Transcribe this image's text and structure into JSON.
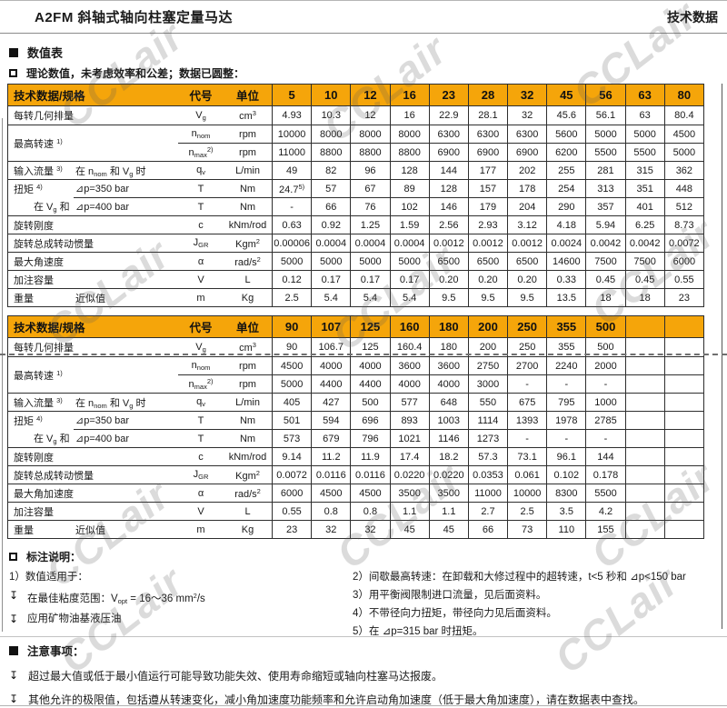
{
  "page": {
    "title": "A2FM 斜轴式轴向柱塞定量马达",
    "title_right": "技术数据",
    "watermark": "CCLair"
  },
  "sections": {
    "values_heading": "数值表",
    "values_note": "理论数值，未考虑效率和公差；数据已圆整："
  },
  "table_header": {
    "spec": "技术数据/规格",
    "code": "代号",
    "unit": "单位"
  },
  "tables": [
    {
      "sizes": [
        "5",
        "10",
        "12",
        "16",
        "23",
        "28",
        "32",
        "45",
        "56",
        "63",
        "80"
      ],
      "rows": [
        {
          "label": "每转几何排量",
          "code": "V~{g}",
          "unit": "cm^{3}",
          "values": [
            "4.93",
            "10.3",
            "12",
            "16",
            "22.9",
            "28.1",
            "32",
            "45.6",
            "56.1",
            "63",
            "80.4"
          ]
        },
        {
          "label": "最高转速 ^{1)}",
          "rowspan": 2,
          "code": "n~{nom}",
          "unit": "rpm",
          "values": [
            "10000",
            "8000",
            "8000",
            "8000",
            "6300",
            "6300",
            "6300",
            "5600",
            "5000",
            "5000",
            "4500"
          ]
        },
        {
          "noLabel": true,
          "code": "n~{max}^{2)}",
          "unit": "rpm",
          "values": [
            "11000",
            "8800",
            "8800",
            "8800",
            "6900",
            "6900",
            "6900",
            "6200",
            "5500",
            "5500",
            "5000"
          ]
        },
        {
          "label": "输入流量 ^{3)}",
          "sub": "在 n~{nom} 和 V~{g} 时",
          "code": "q~{v}",
          "unit": "L/min",
          "values": [
            "49",
            "82",
            "96",
            "128",
            "144",
            "177",
            "202",
            "255",
            "281",
            "315",
            "362"
          ]
        },
        {
          "label": "扭矩 ^{4)}",
          "sub": "⊿p=350 bar",
          "code": "T",
          "unit": "Nm",
          "values": [
            "24.7^{5)}",
            "57",
            "67",
            "89",
            "128",
            "157",
            "178",
            "254",
            "313",
            "351",
            "448"
          ]
        },
        {
          "label": "在 V~{g} 和",
          "indent": true,
          "noTop": true,
          "sub": "⊿p=400 bar",
          "code": "T",
          "unit": "Nm",
          "values": [
            "-",
            "66",
            "76",
            "102",
            "146",
            "179",
            "204",
            "290",
            "357",
            "401",
            "512"
          ]
        },
        {
          "label": "旋转刚度",
          "code": "c",
          "unit": "kNm/rod",
          "values": [
            "0.63",
            "0.92",
            "1.25",
            "1.59",
            "2.56",
            "2.93",
            "3.12",
            "4.18",
            "5.94",
            "6.25",
            "8.73"
          ]
        },
        {
          "label": "旋转总成转动惯量",
          "code": "J~{GR}",
          "unit": "Kgm^{2}",
          "values": [
            "0.00006",
            "0.0004",
            "0.0004",
            "0.0004",
            "0.0012",
            "0.0012",
            "0.0012",
            "0.0024",
            "0.0042",
            "0.0042",
            "0.0072"
          ]
        },
        {
          "label": "最大角速度",
          "code": "α",
          "unit": "rad/s^{2}",
          "values": [
            "5000",
            "5000",
            "5000",
            "5000",
            "6500",
            "6500",
            "6500",
            "14600",
            "7500",
            "7500",
            "6000"
          ]
        },
        {
          "label": "加注容量",
          "code": "V",
          "unit": "L",
          "values": [
            "0.12",
            "0.17",
            "0.17",
            "0.17",
            "0.20",
            "0.20",
            "0.20",
            "0.33",
            "0.45",
            "0.45",
            "0.55"
          ]
        },
        {
          "label": "重量",
          "sub": "近似值",
          "code": "m",
          "unit": "Kg",
          "values": [
            "2.5",
            "5.4",
            "5.4",
            "5.4",
            "9.5",
            "9.5",
            "9.5",
            "13.5",
            "18",
            "18",
            "23"
          ]
        }
      ]
    },
    {
      "sizes": [
        "90",
        "107",
        "125",
        "160",
        "180",
        "200",
        "250",
        "355",
        "500",
        "",
        ""
      ],
      "rows": [
        {
          "label": "每转几何排量",
          "code": "V~{g}",
          "unit": "cm^{3}",
          "values": [
            "90",
            "106.7",
            "125",
            "160.4",
            "180",
            "200",
            "250",
            "355",
            "500",
            "",
            ""
          ]
        },
        {
          "label": "最高转速 ^{1)}",
          "rowspan": 2,
          "code": "n~{nom}",
          "unit": "rpm",
          "values": [
            "4500",
            "4000",
            "4000",
            "3600",
            "3600",
            "2750",
            "2700",
            "2240",
            "2000",
            "",
            ""
          ]
        },
        {
          "noLabel": true,
          "code": "n~{max}^{2)}",
          "unit": "rpm",
          "values": [
            "5000",
            "4400",
            "4400",
            "4000",
            "4000",
            "3000",
            "-",
            "-",
            "-",
            "",
            ""
          ]
        },
        {
          "label": "输入流量 ^{3)}",
          "sub": "在 n~{nom} 和 V~{g} 时",
          "code": "q~{v}",
          "unit": "L/min",
          "values": [
            "405",
            "427",
            "500",
            "577",
            "648",
            "550",
            "675",
            "795",
            "1000",
            "",
            ""
          ]
        },
        {
          "label": "扭矩 ^{4)}",
          "sub": "⊿p=350 bar",
          "code": "T",
          "unit": "Nm",
          "values": [
            "501",
            "594",
            "696",
            "893",
            "1003",
            "1114",
            "1393",
            "1978",
            "2785",
            "",
            ""
          ]
        },
        {
          "label": "在 V~{g} 和",
          "indent": true,
          "noTop": true,
          "sub": "⊿p=400 bar",
          "code": "T",
          "unit": "Nm",
          "values": [
            "573",
            "679",
            "796",
            "1021",
            "1146",
            "1273",
            "-",
            "-",
            "-",
            "",
            ""
          ]
        },
        {
          "label": "旋转刚度",
          "code": "c",
          "unit": "kNm/rod",
          "values": [
            "9.14",
            "11.2",
            "11.9",
            "17.4",
            "18.2",
            "57.3",
            "73.1",
            "96.1",
            "144",
            "",
            ""
          ]
        },
        {
          "label": "旋转总成转动惯量",
          "code": "J~{GR}",
          "unit": "Kgm^{2}",
          "values": [
            "0.0072",
            "0.0116",
            "0.0116",
            "0.0220",
            "0.0220",
            "0.0353",
            "0.061",
            "0.102",
            "0.178",
            "",
            ""
          ]
        },
        {
          "label": "最大角加速度",
          "code": "α",
          "unit": "rad/s^{2}",
          "values": [
            "6000",
            "4500",
            "4500",
            "3500",
            "3500",
            "11000",
            "10000",
            "8300",
            "5500",
            "",
            ""
          ]
        },
        {
          "label": "加注容量",
          "code": "V",
          "unit": "L",
          "values": [
            "0.55",
            "0.8",
            "0.8",
            "1.1",
            "1.1",
            "2.7",
            "2.5",
            "3.5",
            "4.2",
            "",
            ""
          ]
        },
        {
          "label": "重量",
          "sub": "近似值",
          "code": "m",
          "unit": "Kg",
          "values": [
            "23",
            "32",
            "32",
            "45",
            "45",
            "66",
            "73",
            "110",
            "155",
            "",
            ""
          ]
        }
      ]
    }
  ],
  "legend": {
    "heading": "标注说明：",
    "left_items": [
      {
        "bullet": false,
        "text": "1）数值适用于："
      },
      {
        "bullet": true,
        "text": "在最佳粘度范围：V~{opt} = 16～36 mm^{2}/s"
      },
      {
        "bullet": true,
        "text": "应用矿物油基液压油"
      }
    ],
    "right_items": [
      "2）间歇最高转速：在卸载和大修过程中的超转速，t<5 秒和 ⊿p<150 bar",
      "3）用平衡阀限制进口流量，见后面资料。",
      "4）不带径向力扭矩，带径向力见后面资料。",
      "5）在 ⊿p=315 bar 时扭矩。"
    ]
  },
  "notice": {
    "heading": "注意事项：",
    "items": [
      "超过最大值或低于最小值运行可能导致功能失效、使用寿命缩短或轴向柱塞马达报废。",
      "其他允许的极限值，包括遵从转速变化，减小角加速度功能频率和允许启动角加速度（低于最大角加速度），请在数据表中查找。"
    ]
  },
  "colors": {
    "header_bg": "#F5A50A",
    "table_border": "#2e2e2e",
    "watermark_gray": "#c9c9c9"
  }
}
